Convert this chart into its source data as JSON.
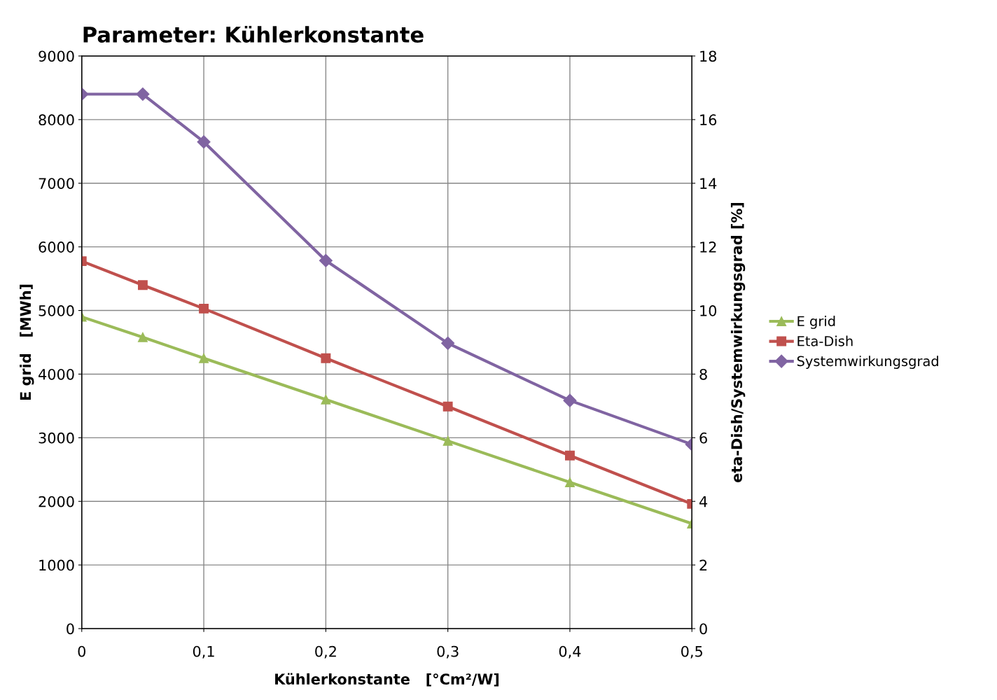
{
  "chart_data": {
    "type": "line",
    "title": "Parameter: Kühlerkonstante",
    "xlabel": "Kühlerkonstante   [°Cm²/W]",
    "ylabel": "E grid   [MWh]",
    "y2label": "eta-Dish/Systemwirkungsgrad [%]",
    "x": [
      0,
      0.05,
      0.1,
      0.2,
      0.3,
      0.4,
      0.5
    ],
    "series": [
      {
        "name": "E grid",
        "color": "#9bbb59",
        "marker": "triangle",
        "values": [
          4900,
          4580,
          4250,
          3600,
          2950,
          2300,
          1650
        ]
      },
      {
        "name": "Eta-Dish",
        "color": "#c0504d",
        "marker": "square",
        "axis": "y2",
        "values": [
          11.55,
          10.8,
          10.06,
          8.5,
          6.98,
          5.44,
          3.92
        ]
      },
      {
        "name": "Systemwirkungsgrad",
        "color": "#8064a2",
        "marker": "diamond",
        "axis": "y2",
        "values": [
          16.8,
          16.8,
          15.3,
          11.57,
          8.97,
          7.17,
          5.79
        ]
      }
    ],
    "xlim": [
      0,
      0.5
    ],
    "xticks": [
      0,
      {
        "value": 0.1,
        "label": "0,1"
      },
      {
        "value": 0.2,
        "label": "0,2"
      },
      {
        "value": 0.3,
        "label": "0,3"
      },
      {
        "value": 0.4,
        "label": "0,4"
      },
      {
        "value": 0.5,
        "label": "0,5"
      }
    ],
    "ylim": [
      0,
      9000
    ],
    "yticks": [
      0,
      1000,
      2000,
      3000,
      4000,
      5000,
      6000,
      7000,
      8000,
      9000
    ],
    "y2lim": [
      0,
      18
    ],
    "y2ticks": [
      0,
      2,
      4,
      6,
      8,
      10,
      12,
      14,
      16,
      18
    ],
    "grid": true,
    "legend": "right",
    "line_style": "solid"
  }
}
